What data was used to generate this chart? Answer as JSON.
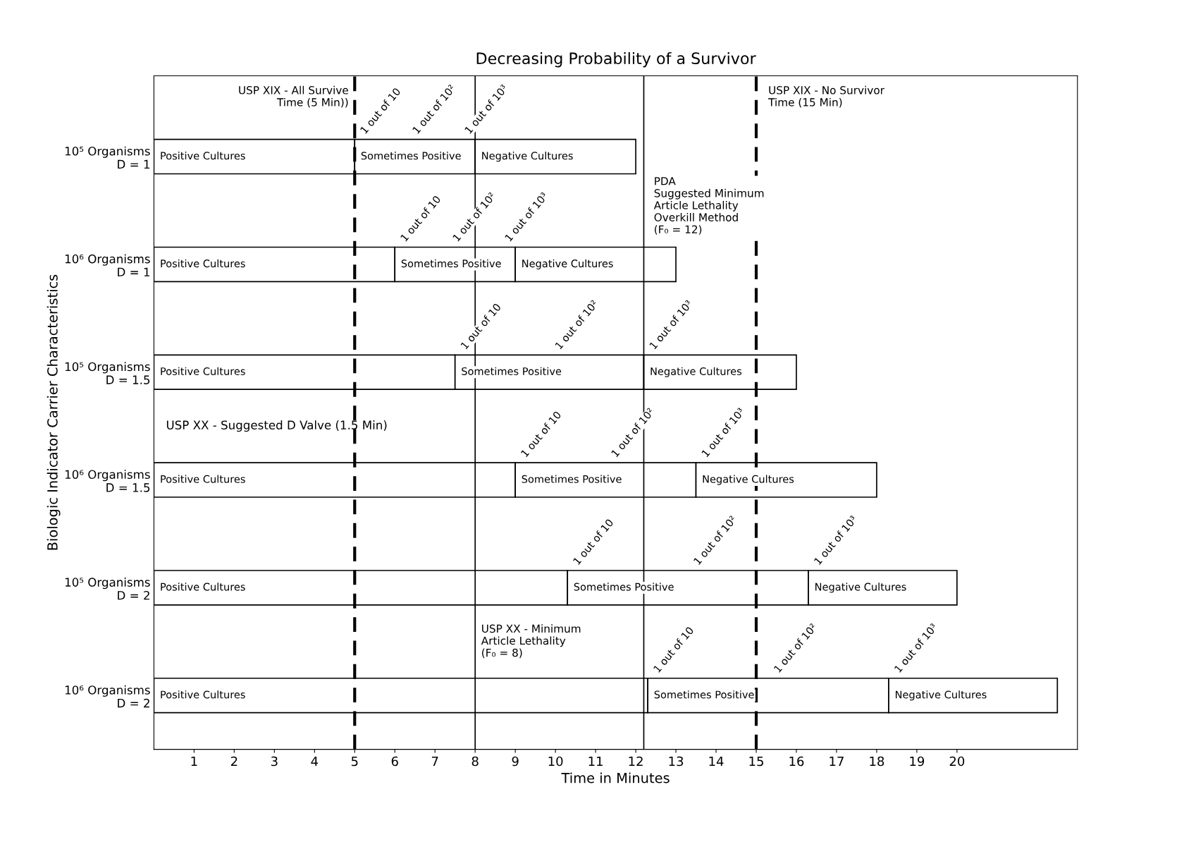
{
  "chart_data": {
    "type": "bar",
    "orientation": "horizontal",
    "stacked": true,
    "title": "Decreasing Probability of a Survivor",
    "xlabel": "Time in Minutes",
    "ylabel": "Biologic Indicator Carrier Characteristics",
    "categories": [
      "10⁵ Organisms\nD = 1",
      "10⁶ Organisms\nD = 1",
      "10⁵ Organisms\nD = 1.5",
      "10⁶ Organisms\nD = 1.5",
      "10⁵ Organisms\nD = 2",
      "10⁶ Organisms\nD = 2"
    ],
    "series": [
      {
        "name": "Positive Cultures",
        "color": "#ffffff",
        "values": [
          5,
          6,
          7.5,
          9,
          10.3,
          12.3
        ]
      },
      {
        "name": "Sometimes Positive",
        "color": "#ffffff",
        "values": [
          3,
          3,
          4.7,
          4.5,
          6,
          6
        ]
      },
      {
        "name": "Negative Cultures",
        "color": "#ffffff",
        "values": [
          4,
          4,
          3.8,
          4.5,
          3.7,
          4.2
        ]
      }
    ],
    "xlim": [
      0,
      23
    ],
    "xticks": [
      1,
      2,
      3,
      4,
      5,
      6,
      7,
      8,
      9,
      10,
      11,
      12,
      13,
      14,
      15,
      16,
      17,
      18,
      19,
      20
    ],
    "grid": false,
    "legend": false,
    "ref_lines": [
      {
        "axis": "x",
        "value": 5,
        "label": "USP XIX - All Survive\nTime (5 Min))",
        "line_style": "dashed",
        "color": "#000000"
      },
      {
        "axis": "x",
        "value": 15,
        "label": "USP XIX - No Survivor\nTime (15 Min)",
        "line_style": "dashed",
        "color": "#000000"
      },
      {
        "axis": "x",
        "value": 8,
        "label": "USP XX - Minimum\nArticle Lethality\n(F₀ = 8)",
        "line_style": "solid",
        "color": "#000000"
      },
      {
        "axis": "x",
        "value": 12.2,
        "label": "PDA\nSuggested Minimum\nArticle Lethality\nOverkill Method\n(F₀ = 12)",
        "line_style": "solid",
        "color": "#000000"
      }
    ],
    "annotations": [
      "USP XX - Suggested D Valve (1.5 Min)",
      "1 out of 10",
      "1 out of 10²",
      "1 out of 10³",
      "1 out of 10",
      "1 out of 10²",
      "1 out of 10³",
      "1 out of 10",
      "1 out of 10²",
      "1 out of 10³",
      "1 out of 10",
      "1 out of 10²",
      "1 out of 10³",
      "1 out of 10",
      "1 out of 10²",
      "1 out of 10³",
      "1 out of 10",
      "1 out of 10²",
      "1 out of 10³"
    ]
  }
}
